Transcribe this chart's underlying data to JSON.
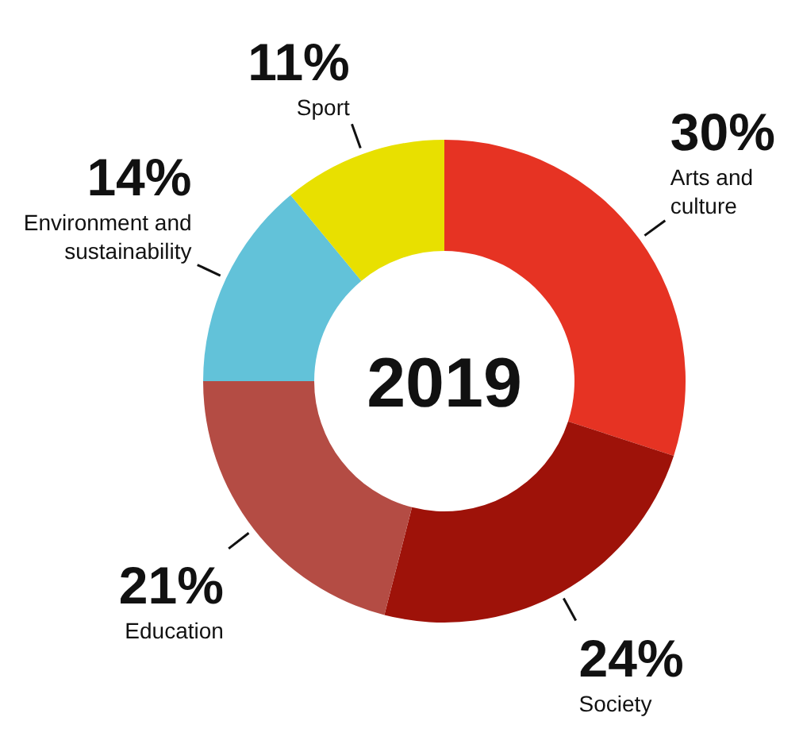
{
  "chart_data": {
    "type": "donut",
    "title": "2019",
    "categories": [
      "Arts and culture",
      "Society",
      "Education",
      "Environment and sustainability",
      "Sport"
    ],
    "values": [
      30,
      24,
      21,
      14,
      11
    ],
    "colors": [
      "#e63323",
      "#9e1209",
      "#b44c44",
      "#62c2d9",
      "#e8e000"
    ],
    "value_labels": [
      "30%",
      "24%",
      "21%",
      "14%",
      "11%"
    ]
  }
}
